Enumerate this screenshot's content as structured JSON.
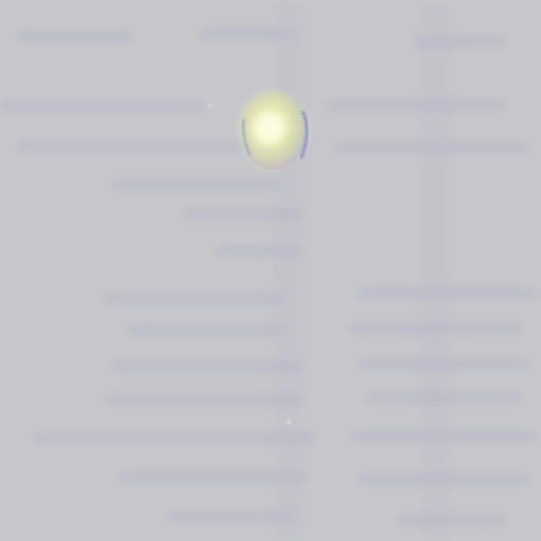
{
  "scene": {
    "kind": "photo",
    "background_color": "#c7c7cb",
    "ghost_text_color": "#a9a9c6",
    "droplet": {
      "core_color": "#f1f3b8",
      "rim_color": "#8c90c8"
    }
  }
}
